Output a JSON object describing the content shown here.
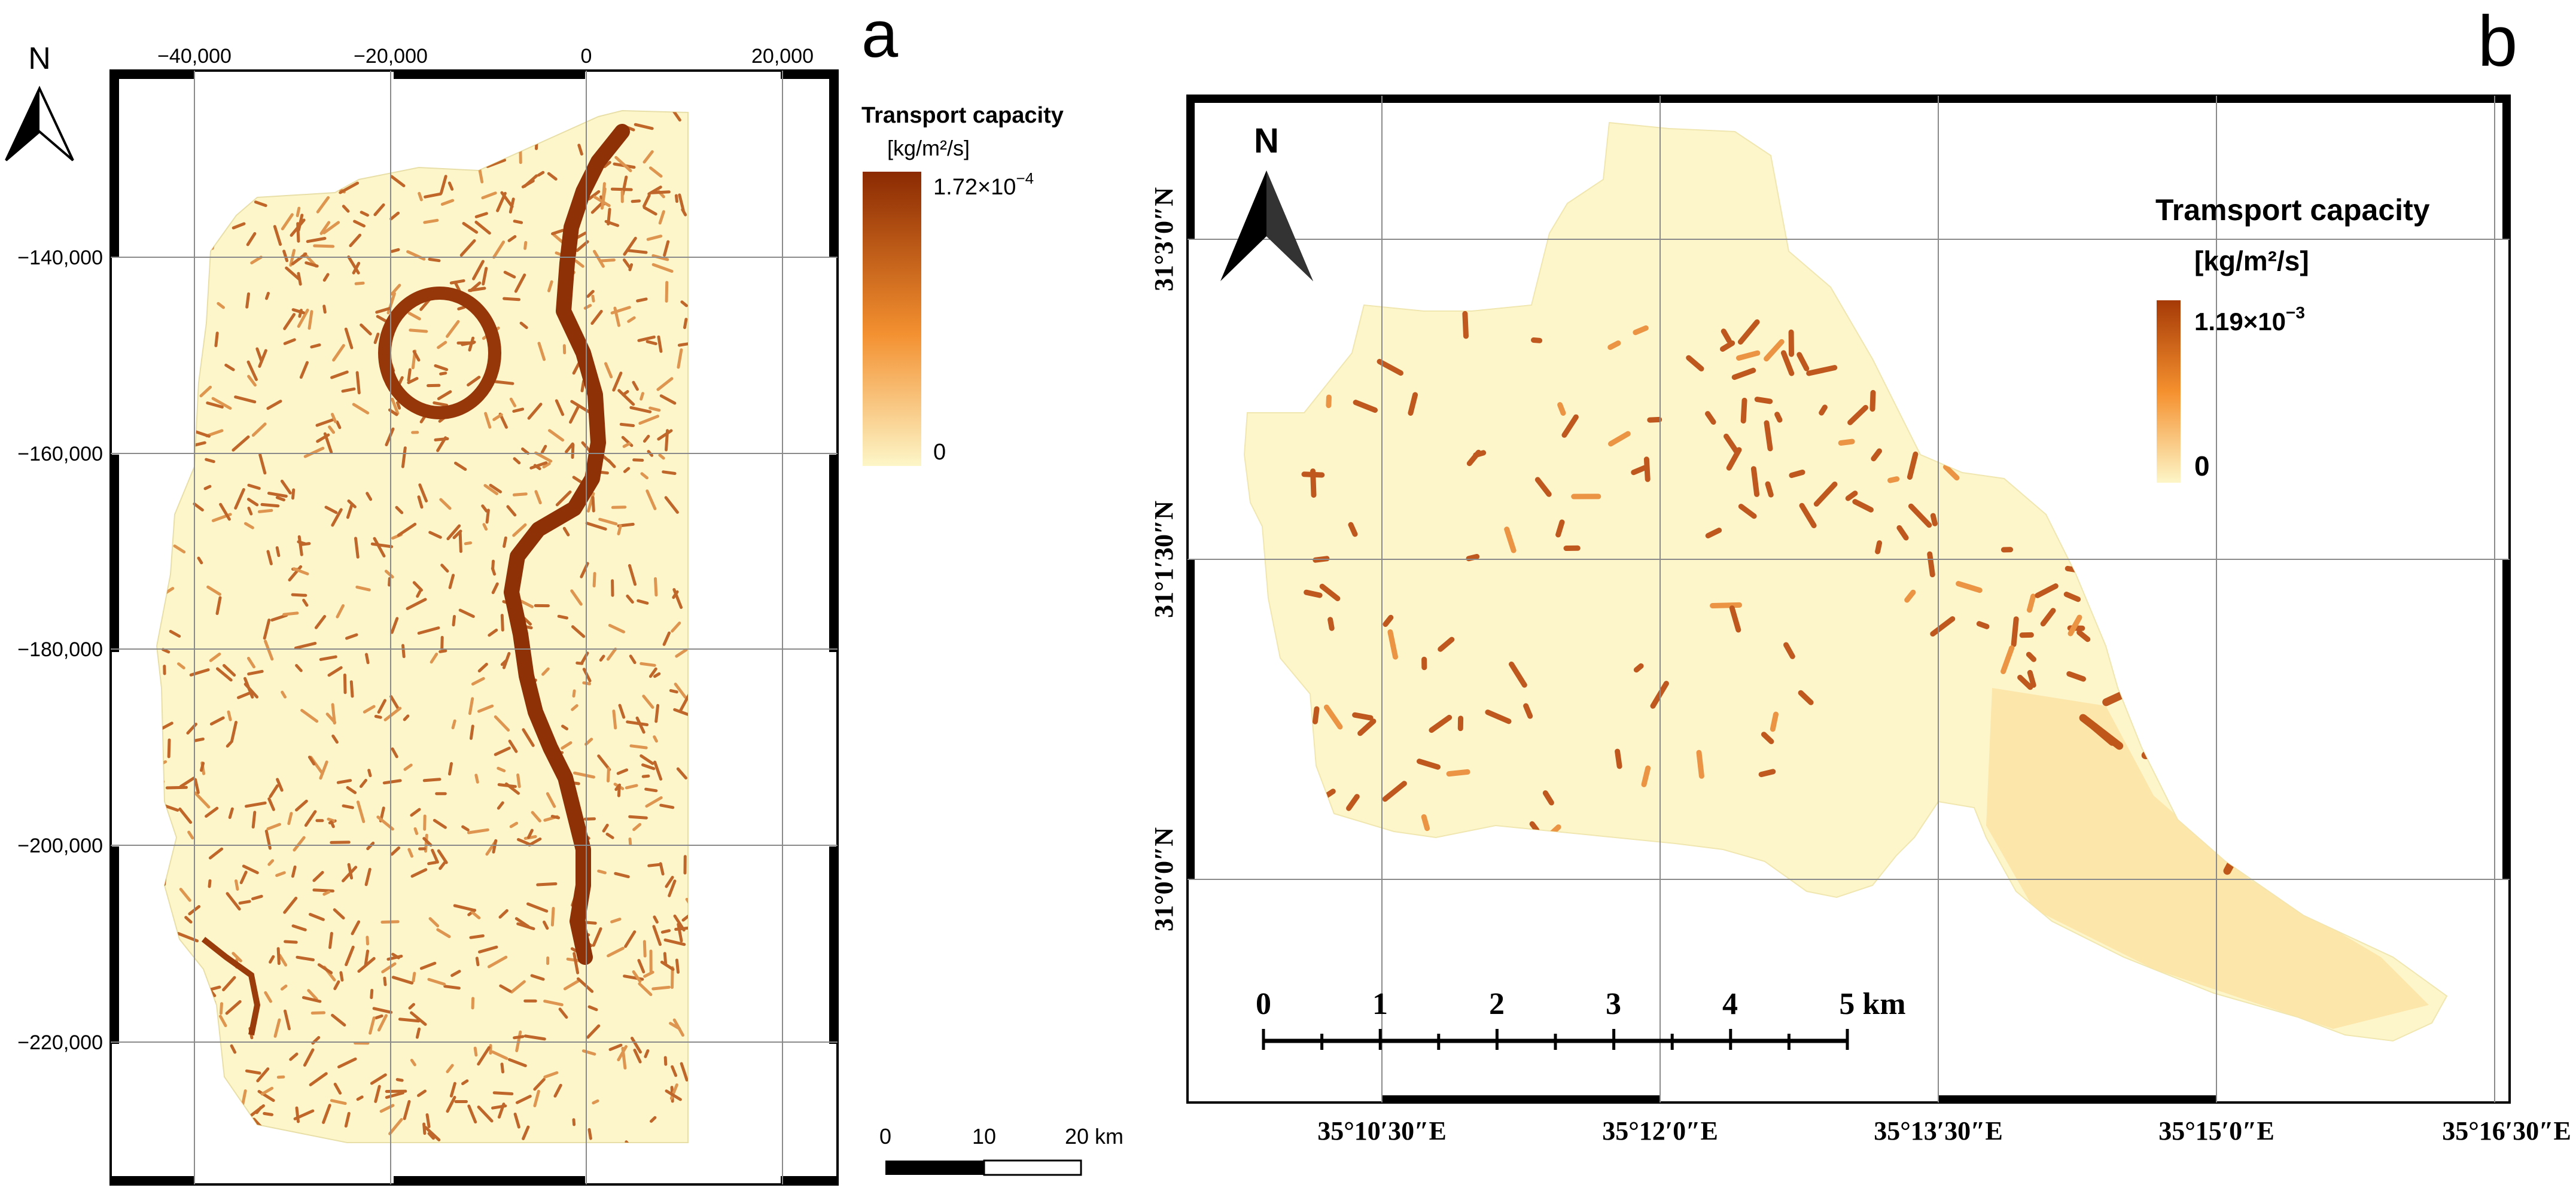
{
  "panel_a": {
    "label": "a",
    "north_label": "N",
    "x_ticks": [
      "−40,000",
      "−20,000",
      "0",
      "20,000"
    ],
    "y_ticks": [
      "−140,000",
      "−160,000",
      "−180,000",
      "−200,000",
      "−220,000"
    ],
    "legend": {
      "title": "Transport capacity",
      "unit": "[kg/m²/s]",
      "max_label": "1.72×10",
      "max_exp": "−4",
      "min_label": "0",
      "color_low": "#fdf6c8",
      "color_mid": "#f39030",
      "color_high": "#8b2a02"
    },
    "scalebar": {
      "labels": [
        "0",
        "10",
        "20 km"
      ]
    }
  },
  "panel_b": {
    "label": "b",
    "north_label": "N",
    "x_ticks": [
      "35°10′30″E",
      "35°12′0″E",
      "35°13′30″E",
      "35°15′0″E",
      "35°16′30″E"
    ],
    "y_ticks": [
      "31°3′0″N",
      "31°1′30″N",
      "31°0′0″N"
    ],
    "legend": {
      "title": "Tramsport capacity",
      "unit": "[kg/m²/s]",
      "max_label": "1.19×10",
      "max_exp": "−3",
      "min_label": "0",
      "color_low": "#fdf6c8",
      "color_mid": "#f5902e",
      "color_high": "#a63a07"
    },
    "scalebar": {
      "labels": [
        "0",
        "1",
        "2",
        "3",
        "4",
        "5 km"
      ]
    }
  }
}
